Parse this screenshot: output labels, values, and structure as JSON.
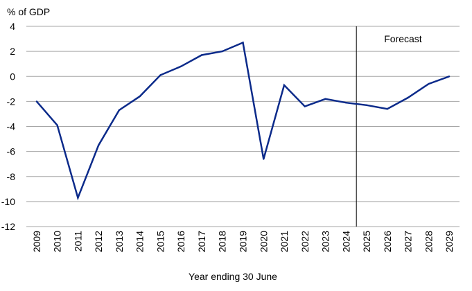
{
  "chart_data": {
    "type": "line",
    "ylabel": "% of GDP",
    "xlabel": "Year ending 30 June",
    "ylim": [
      -12,
      4
    ],
    "yticks": [
      4,
      2,
      0,
      -2,
      -4,
      -6,
      -8,
      -10,
      -12
    ],
    "grid": true,
    "x": [
      "2009",
      "2010",
      "2011",
      "2012",
      "2013",
      "2014",
      "2015",
      "2016",
      "2017",
      "2018",
      "2019",
      "2020",
      "2021",
      "2022",
      "2023",
      "2024",
      "2025",
      "2026",
      "2027",
      "2028",
      "2029"
    ],
    "series": [
      {
        "values": [
          -2.0,
          -3.9,
          -9.7,
          -5.5,
          -2.7,
          -1.6,
          0.1,
          0.8,
          1.7,
          2.0,
          2.7,
          -6.6,
          -0.7,
          -2.4,
          -1.8,
          -2.1,
          -2.3,
          -2.6,
          -1.7,
          -0.6,
          0.0
        ],
        "color": "#0b2a8a"
      }
    ],
    "forecast": {
      "label": "Forecast",
      "divider_between": [
        "2024",
        "2025"
      ]
    }
  }
}
